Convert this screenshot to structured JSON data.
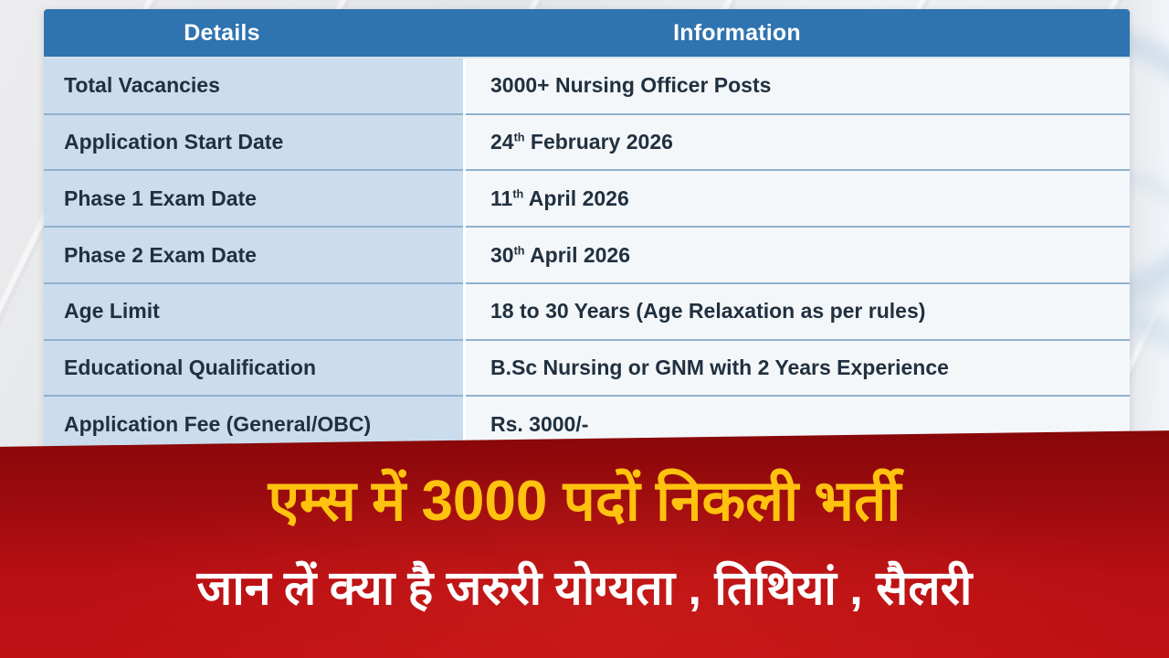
{
  "table": {
    "headers": [
      "Details",
      "Information"
    ],
    "rows": [
      {
        "label": "Total Vacancies",
        "value": "3000+ Nursing Officer Posts"
      },
      {
        "label": "Application Start Date",
        "day": "24",
        "ordinal": "th",
        "rest": " February 2026"
      },
      {
        "label": "Phase 1 Exam Date",
        "day": "11",
        "ordinal": "th",
        "rest": " April 2026"
      },
      {
        "label": "Phase 2 Exam Date",
        "day": "30",
        "ordinal": "th",
        "rest": " April 2026"
      },
      {
        "label": "Age Limit",
        "value": "18 to 30 Years (Age Relaxation as per rules)"
      },
      {
        "label": "Educational Qualification",
        "value": "B.Sc Nursing or GNM with 2 Years Experience"
      },
      {
        "label": "Application Fee (General/OBC)",
        "value": "Rs. 3000/-"
      }
    ]
  },
  "banner": {
    "line1": "एम्स में 3000 पदों निकली भर्ती",
    "line2": "जान लें क्या है जरुरी योग्यता , तिथियां , सैलरी"
  },
  "colors": {
    "header_bg": "#2f73b0",
    "label_cell_bg": "#cbdcec",
    "value_cell_bg": "#f4f7fa",
    "row_divider": "#8fb1cd",
    "table_text": "#21303f",
    "banner_red_dark": "#870709",
    "banner_red_bright": "#c01014",
    "headline_yellow": "#ffc20e",
    "headline_white": "#ffffff"
  }
}
